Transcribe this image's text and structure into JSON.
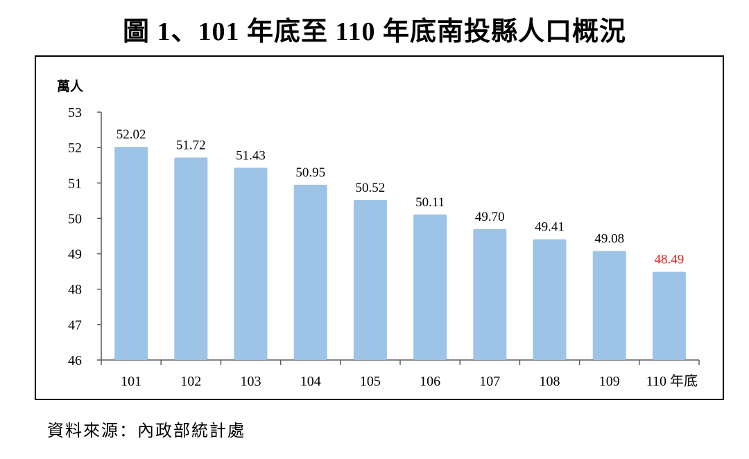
{
  "title": "圖 1、101 年底至 110 年底南投縣人口概況",
  "source": "資料來源：內政部統計處",
  "chart_data": {
    "type": "bar",
    "title": "圖 1、101 年底至 110 年底南投縣人口概況",
    "ylabel": "萬人",
    "xlabel": "",
    "categories": [
      "101",
      "102",
      "103",
      "104",
      "105",
      "106",
      "107",
      "108",
      "109",
      "110 年底"
    ],
    "values": [
      52.02,
      51.72,
      51.43,
      50.95,
      50.52,
      50.11,
      49.7,
      49.41,
      49.08,
      48.49
    ],
    "value_labels": [
      "52.02",
      "51.72",
      "51.43",
      "50.95",
      "50.52",
      "50.11",
      "49.70",
      "49.41",
      "49.08",
      "48.49"
    ],
    "ylim": [
      46,
      53
    ],
    "yticks": [
      "46",
      "47",
      "48",
      "49",
      "50",
      "51",
      "52",
      "53"
    ],
    "grid": false,
    "bar_color": "#9DC3E6",
    "highlight_label_color": "#E0201E"
  }
}
